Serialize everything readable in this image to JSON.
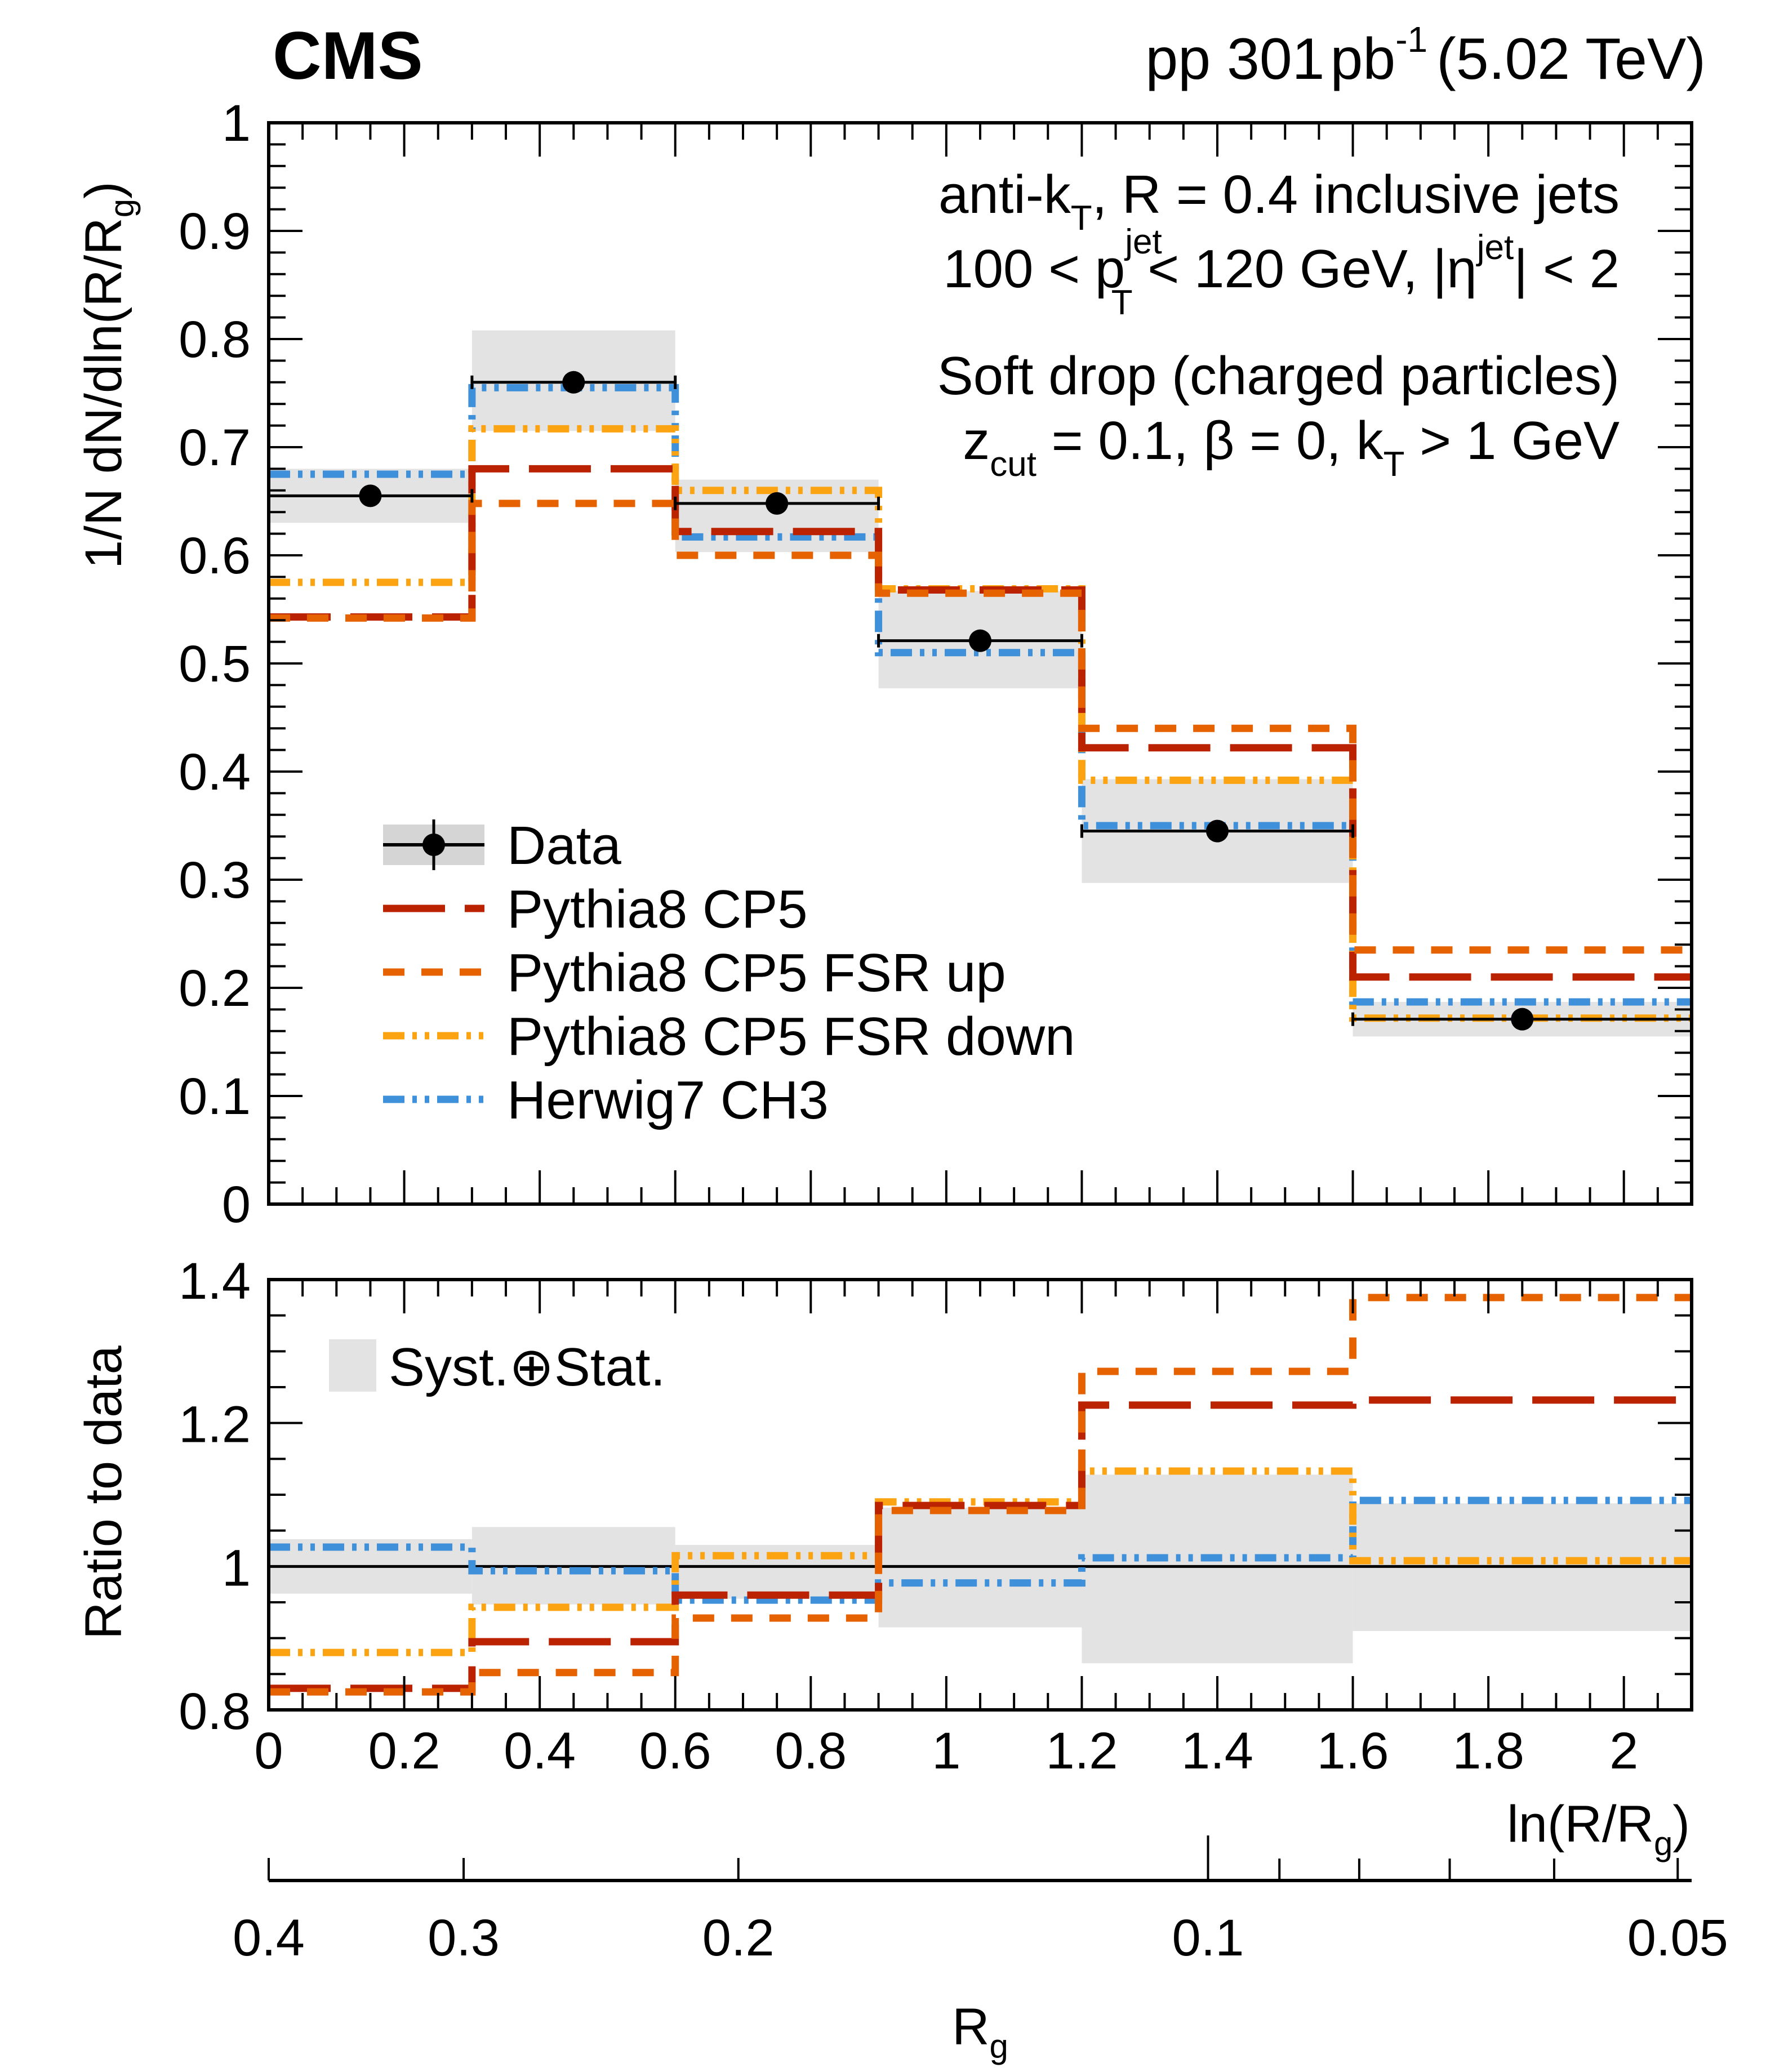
{
  "header": {
    "experiment": "CMS",
    "lumi_prefix": "pp 301",
    "lumi_unit": "pb",
    "lumi_exp": "-1",
    "energy": "(5.02 TeV)"
  },
  "annotations": {
    "line1": {
      "a": "anti-k",
      "sub": "T",
      "b": ", R = 0.4 inclusive jets"
    },
    "line2": {
      "a": "100 < p",
      "sup": "jet",
      "sub": "T",
      "b": " < 120 GeV, |η",
      "sup2": "jet",
      "c": "| < 2"
    },
    "line3": "Soft drop (charged particles)",
    "line4": {
      "a": "z",
      "sub": "cut",
      "b": " = 0.1, β = 0, k",
      "sub2": "T",
      "c": " > 1 GeV"
    }
  },
  "colors": {
    "pythia_cp5": "#bb2200",
    "fsr_up": "#e66100",
    "fsr_down": "#fca311",
    "herwig": "#3f90da",
    "band": "#e3e3e3",
    "data": "#000000"
  },
  "chart_data": [
    {
      "type": "line",
      "panel": "main",
      "title": "",
      "xlabel": "",
      "ylabel_main": "1/N dN/dln(R/R",
      "ylabel_sub": "g",
      "ylabel_end": ")",
      "xlim": [
        0,
        2.1
      ],
      "ylim": [
        0,
        1
      ],
      "yticks": [
        "0",
        "0.1",
        "0.2",
        "0.3",
        "0.4",
        "0.5",
        "0.6",
        "0.7",
        "0.8",
        "0.9",
        "1"
      ],
      "yticks_values": [
        0,
        0.1,
        0.2,
        0.3,
        0.4,
        0.5,
        0.6,
        0.7,
        0.8,
        0.9,
        1.0
      ],
      "bin_edges": [
        0,
        0.3,
        0.6,
        0.9,
        1.2,
        1.6,
        2.1
      ],
      "data": {
        "name": "Data",
        "x": [
          0.15,
          0.45,
          0.75,
          1.05,
          1.4,
          1.85
        ],
        "y": [
          0.655,
          0.76,
          0.648,
          0.521,
          0.345,
          0.171
        ],
        "syst_low": [
          0.63,
          0.715,
          0.603,
          0.477,
          0.297,
          0.155
        ],
        "syst_high": [
          0.68,
          0.808,
          0.67,
          0.567,
          0.393,
          0.187
        ]
      },
      "series": [
        {
          "name": "Pythia8 CP5",
          "key": "pythia_cp5",
          "style": "long-dash",
          "values": [
            0.543,
            0.68,
            0.622,
            0.568,
            0.422,
            0.21
          ]
        },
        {
          "name": "Pythia8 CP5 FSR up",
          "key": "fsr_up",
          "style": "dash",
          "values": [
            0.542,
            0.648,
            0.6,
            0.565,
            0.44,
            0.235
          ]
        },
        {
          "name": "Pythia8 CP5 FSR down",
          "key": "fsr_down",
          "style": "dash-dot-dot",
          "values": [
            0.575,
            0.717,
            0.66,
            0.569,
            0.392,
            0.172
          ]
        },
        {
          "name": "Herwig7 CH3",
          "key": "herwig",
          "style": "dash-dot-dot",
          "values": [
            0.675,
            0.755,
            0.617,
            0.51,
            0.35,
            0.187
          ]
        }
      ],
      "legend": [
        "Data",
        "Pythia8 CP5",
        "Pythia8 CP5 FSR up",
        "Pythia8 CP5 FSR down",
        "Herwig7 CH3"
      ],
      "legend_position": "center-left"
    },
    {
      "type": "line",
      "panel": "ratio",
      "ylabel": "Ratio to data",
      "xlabel_main": "ln(R/R",
      "xlabel_sub": "g",
      "xlabel_end": ")",
      "xlim": [
        0,
        2.1
      ],
      "ylim": [
        0.8,
        1.4
      ],
      "yticks": [
        "0.8",
        "1",
        "1.2",
        "1.4"
      ],
      "yticks_values": [
        0.8,
        1.0,
        1.2,
        1.4
      ],
      "xticks": [
        "0",
        "0.2",
        "0.4",
        "0.6",
        "0.8",
        "1",
        "1.2",
        "1.4",
        "1.6",
        "1.8",
        "2"
      ],
      "xticks_values": [
        0,
        0.2,
        0.4,
        0.6,
        0.8,
        1.0,
        1.2,
        1.4,
        1.6,
        1.8,
        2.0
      ],
      "bin_edges": [
        0,
        0.3,
        0.6,
        0.9,
        1.2,
        1.6,
        2.1
      ],
      "band_legend": "Syst.⊕Stat.",
      "band_low": [
        0.962,
        0.947,
        0.955,
        0.915,
        0.865,
        0.91
      ],
      "band_high": [
        1.038,
        1.055,
        1.03,
        1.082,
        1.128,
        1.088
      ],
      "series": [
        {
          "name": "Pythia8 CP5",
          "key": "pythia_cp5",
          "style": "long-dash",
          "values": [
            0.83,
            0.895,
            0.96,
            1.085,
            1.225,
            1.232
          ]
        },
        {
          "name": "Pythia8 CP5 FSR up",
          "key": "fsr_up",
          "style": "dash",
          "values": [
            0.825,
            0.852,
            0.928,
            1.078,
            1.272,
            1.375
          ]
        },
        {
          "name": "Pythia8 CP5 FSR down",
          "key": "fsr_down",
          "style": "dash-dot-dot",
          "values": [
            0.88,
            0.943,
            1.015,
            1.09,
            1.133,
            1.008
          ]
        },
        {
          "name": "Herwig7 CH3",
          "key": "herwig",
          "style": "dash-dot-dot",
          "values": [
            1.027,
            0.994,
            0.953,
            0.977,
            1.012,
            1.092
          ]
        }
      ]
    },
    {
      "type": "axis",
      "panel": "secondary-x",
      "xlabel_main": "R",
      "xlabel_sub": "g",
      "scale": "R_g = 0.4 / exp(x)",
      "ticks": [
        "0.4",
        "0.3",
        "0.2",
        "0.1",
        "0.05"
      ],
      "ticks_values": [
        0.4,
        0.3,
        0.2,
        0.1,
        0.05
      ],
      "minor_ticks_values": [
        0.09,
        0.08,
        0.07,
        0.06
      ]
    }
  ]
}
